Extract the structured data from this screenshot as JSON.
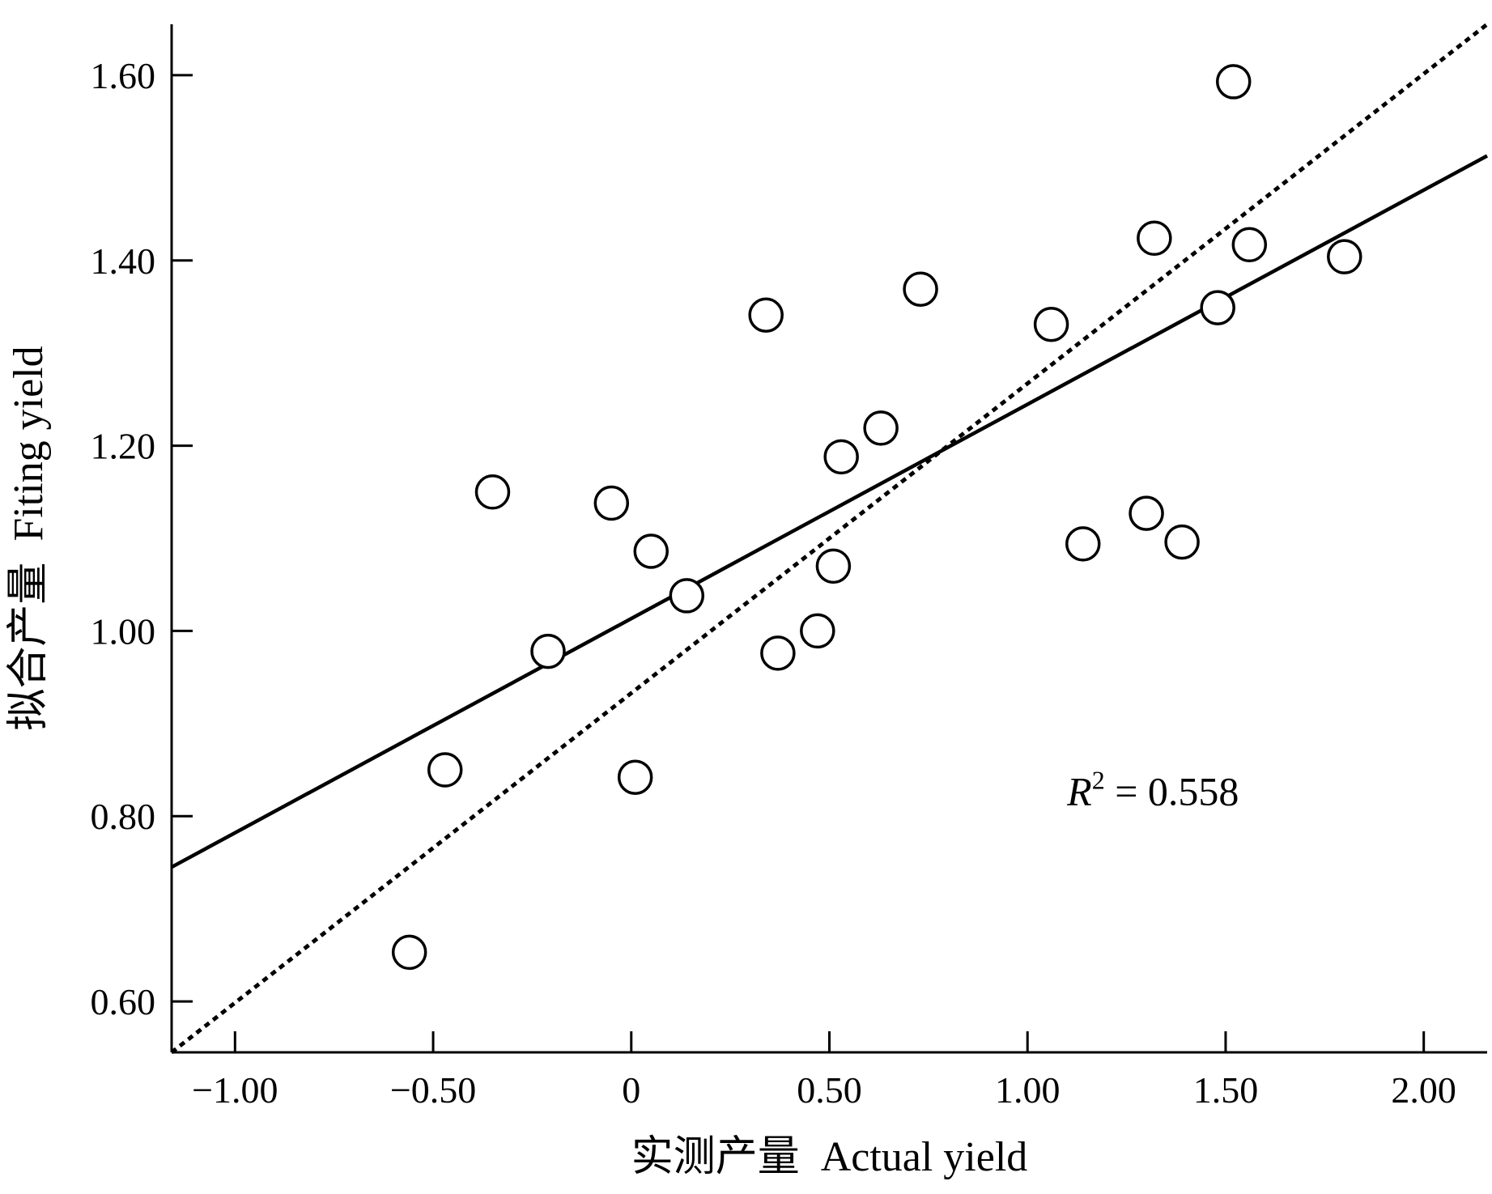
{
  "chart_data": {
    "type": "scatter",
    "xlabel": "实测产量  Actual yield",
    "ylabel": "拟合产量  Fiting yield",
    "xlim": [
      -1.16,
      2.16
    ],
    "ylim": [
      0.545,
      1.655
    ],
    "x_ticks": [
      -1.0,
      -0.5,
      0,
      0.5,
      1.0,
      1.5,
      2.0
    ],
    "x_tick_labels": [
      "−1.00",
      "−0.50",
      "0",
      "0.50",
      "1.00",
      "1.50",
      "2.00"
    ],
    "y_ticks": [
      0.6,
      0.8,
      1.0,
      1.2,
      1.4,
      1.6
    ],
    "y_tick_labels": [
      "0.60",
      "0.80",
      "1.00",
      "1.20",
      "1.40",
      "1.60"
    ],
    "grid": false,
    "points": [
      {
        "x": -0.56,
        "y": 0.653
      },
      {
        "x": -0.47,
        "y": 0.85
      },
      {
        "x": -0.35,
        "y": 1.15
      },
      {
        "x": -0.21,
        "y": 0.978
      },
      {
        "x": -0.05,
        "y": 1.138
      },
      {
        "x": 0.01,
        "y": 0.842
      },
      {
        "x": 0.05,
        "y": 1.086
      },
      {
        "x": 0.14,
        "y": 1.038
      },
      {
        "x": 0.34,
        "y": 1.341
      },
      {
        "x": 0.37,
        "y": 0.976
      },
      {
        "x": 0.47,
        "y": 1.0
      },
      {
        "x": 0.51,
        "y": 1.07
      },
      {
        "x": 0.53,
        "y": 1.188
      },
      {
        "x": 0.63,
        "y": 1.219
      },
      {
        "x": 0.73,
        "y": 1.369
      },
      {
        "x": 1.06,
        "y": 1.331
      },
      {
        "x": 1.14,
        "y": 1.094
      },
      {
        "x": 1.3,
        "y": 1.127
      },
      {
        "x": 1.32,
        "y": 1.424
      },
      {
        "x": 1.39,
        "y": 1.096
      },
      {
        "x": 1.48,
        "y": 1.349
      },
      {
        "x": 1.52,
        "y": 1.593
      },
      {
        "x": 1.56,
        "y": 1.417
      },
      {
        "x": 1.8,
        "y": 1.404
      }
    ],
    "regression_line": {
      "style": "solid",
      "x": [
        -1.16,
        2.16
      ],
      "y": [
        0.745,
        1.513
      ]
    },
    "reference_line": {
      "style": "dotted",
      "x": [
        -1.16,
        2.16
      ],
      "y": [
        0.545,
        1.655
      ]
    },
    "annotation": {
      "symbol": "R",
      "superscript": "2",
      "text": " = 0.558",
      "x": 1.1,
      "y": 0.812
    }
  }
}
